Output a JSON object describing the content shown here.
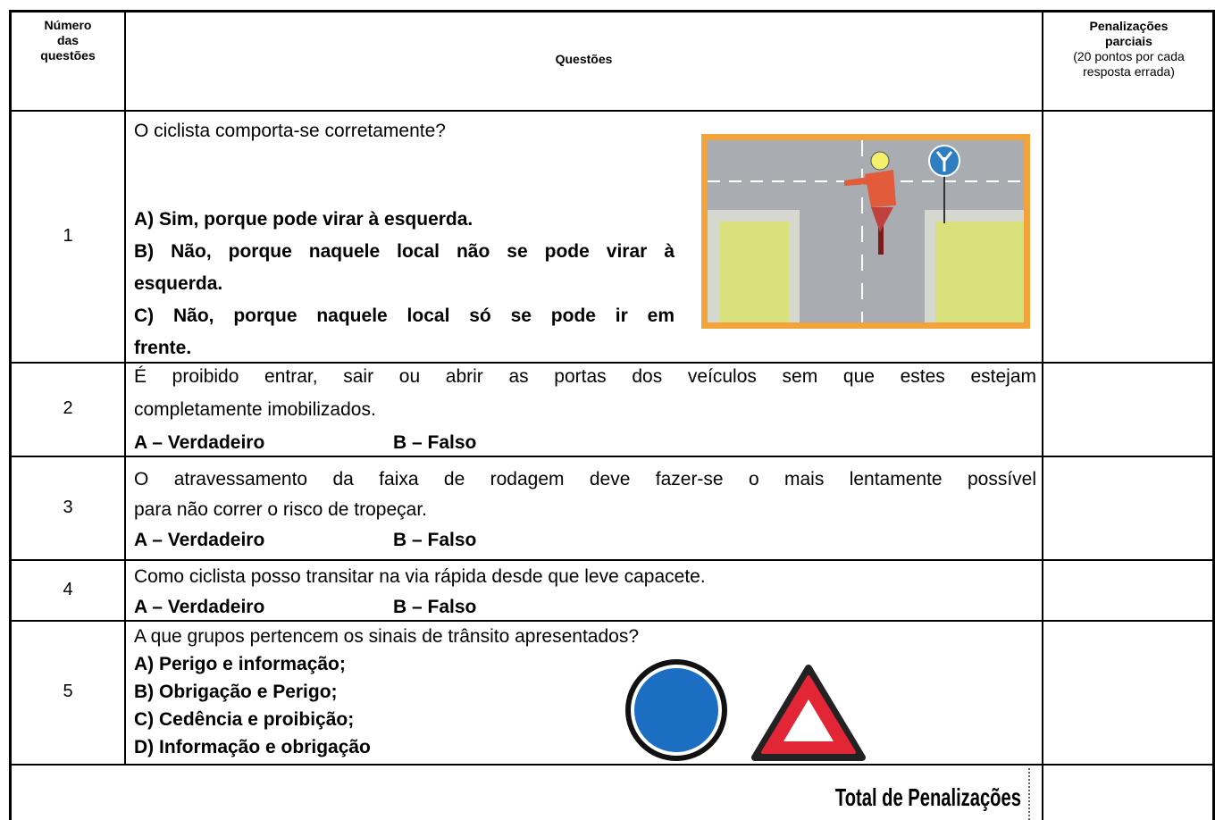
{
  "header": {
    "number": "Número das questões",
    "questions": "Questões",
    "penalties_title": "Penalizações parciais",
    "penalties_note": "(20 pontos por cada resposta errada)"
  },
  "questions": [
    {
      "number": "1",
      "text_lines": [
        "O ciclista comporta-se corretamente?"
      ],
      "options": [
        [
          "A) Sim, porque pode virar à esquerda."
        ],
        [
          "B) Não, porque naquele local não se pode virar à",
          "esquerda."
        ],
        [
          "C) Não, porque naquele local só se pode ir em",
          "frente."
        ]
      ]
    },
    {
      "number": "2",
      "text_lines": [
        "É proibido entrar, sair ou abrir as portas dos veículos sem que estes estejam",
        "completamente imobilizados."
      ],
      "options": [
        "A – Verdadeiro",
        "B – Falso"
      ]
    },
    {
      "number": "3",
      "text_lines": [
        "O atravessamento da faixa de rodagem deve fazer-se o mais lentamente possível",
        "para não correr o risco de tropeçar."
      ],
      "options": [
        "A – Verdadeiro",
        "B – Falso"
      ]
    },
    {
      "number": "4",
      "text_lines": [
        "Como ciclista posso transitar na via rápida desde que leve capacete."
      ],
      "options": [
        "A – Verdadeiro",
        "B – Falso"
      ]
    },
    {
      "number": "5",
      "text_lines": [
        "A que grupos pertencem os sinais de trânsito apresentados?"
      ],
      "options": [
        "A) Perigo e informação;",
        "B) Obrigação e Perigo;",
        "C) Cedência e proibição;",
        "D) Informação e obrigação"
      ]
    }
  ],
  "total_label": "Total de Penalizações"
}
